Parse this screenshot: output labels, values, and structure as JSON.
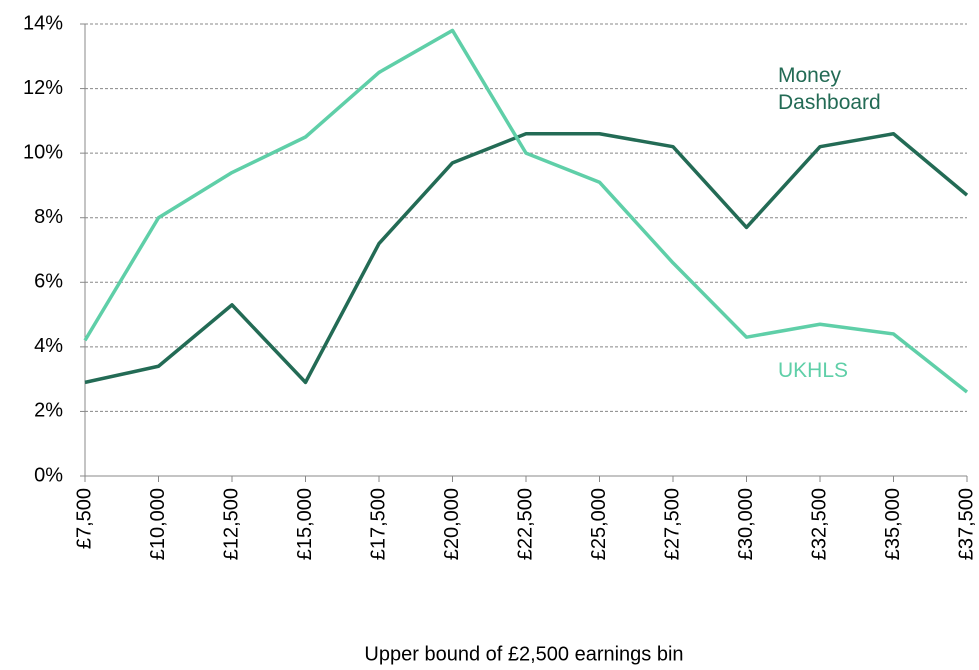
{
  "chart_data": {
    "type": "line",
    "x_label": "Upper bound of £2,500 earnings bin",
    "categories": [
      "£7,500",
      "£10,000",
      "£12,500",
      "£15,000",
      "£17,500",
      "£20,000",
      "£22,500",
      "£25,000",
      "£27,500",
      "£30,000",
      "£32,500",
      "£35,000",
      "£37,500"
    ],
    "series": [
      {
        "name": "Money Dashboard",
        "color": "#236b55",
        "values": [
          2.9,
          3.4,
          5.3,
          2.9,
          7.2,
          9.7,
          10.6,
          10.6,
          10.2,
          7.7,
          10.2,
          10.6,
          8.7
        ]
      },
      {
        "name": "UKHLS",
        "color": "#5fcfa8",
        "values": [
          4.2,
          8.0,
          9.4,
          10.5,
          12.5,
          13.8,
          10.0,
          9.1,
          6.6,
          4.3,
          4.7,
          4.4,
          2.6
        ]
      }
    ],
    "ylim": [
      0,
      14
    ],
    "yticks": [
      {
        "value": 0,
        "label": "0%"
      },
      {
        "value": 2,
        "label": "2%"
      },
      {
        "value": 4,
        "label": "4%"
      },
      {
        "value": 6,
        "label": "6%"
      },
      {
        "value": 8,
        "label": "8%"
      },
      {
        "value": 10,
        "label": "10%"
      },
      {
        "value": 12,
        "label": "12%"
      },
      {
        "value": 14,
        "label": "14%"
      }
    ],
    "grid": true
  }
}
